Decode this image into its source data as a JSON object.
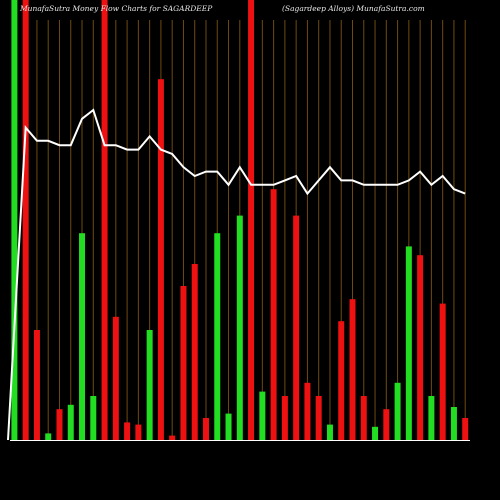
{
  "header": {
    "left": "MunafaSutra  Money Flow  Charts for SAGARDEEP",
    "right": "(Sagardeep Alloys) MunafaSutra.com"
  },
  "chart_data": {
    "type": "bar",
    "title": "MunafaSutra  Money Flow  Charts for SAGARDEEP",
    "subtitle": "(Sagardeep Alloys) MunafaSutra.com",
    "xlabel": "",
    "ylabel": "",
    "grid": true,
    "series": [
      {
        "name": "",
        "values": [
          100,
          100,
          25,
          1.5,
          7,
          8,
          47,
          10,
          100,
          28,
          4,
          3.5,
          25,
          82,
          1,
          35,
          40,
          5,
          47,
          6,
          51,
          100,
          11,
          57,
          10,
          51,
          13,
          10,
          3.5,
          27,
          32,
          10,
          3,
          7,
          13,
          44,
          42,
          10,
          31,
          7.5,
          5
        ],
        "colors": [
          "green",
          "red",
          "red",
          "green",
          "red",
          "green",
          "green",
          "green",
          "red",
          "red",
          "red",
          "red",
          "green",
          "red",
          "red",
          "red",
          "red",
          "red",
          "green",
          "green",
          "green",
          "red",
          "green",
          "red",
          "red",
          "red",
          "red",
          "red",
          "green",
          "red",
          "red",
          "red",
          "green",
          "red",
          "green",
          "green",
          "red",
          "green",
          "red",
          "green",
          "red"
        ]
      },
      {
        "name": "",
        "type": "line",
        "values": [
          0,
          71,
          68,
          68,
          67,
          67,
          73,
          75,
          67,
          67,
          66,
          66,
          69,
          66,
          65,
          62,
          60,
          61,
          61,
          58,
          62,
          58,
          58,
          58,
          59,
          60,
          56,
          59,
          62,
          59,
          59,
          58,
          58,
          58,
          58,
          59,
          61,
          58,
          60,
          57,
          56
        ]
      }
    ],
    "colors": {
      "green": "#22dd22",
      "red": "#ee1111",
      "line": "#ffffff",
      "grid": "#6e4a10",
      "baseline": "#ffffff"
    },
    "ylim": [
      0,
      100
    ]
  }
}
